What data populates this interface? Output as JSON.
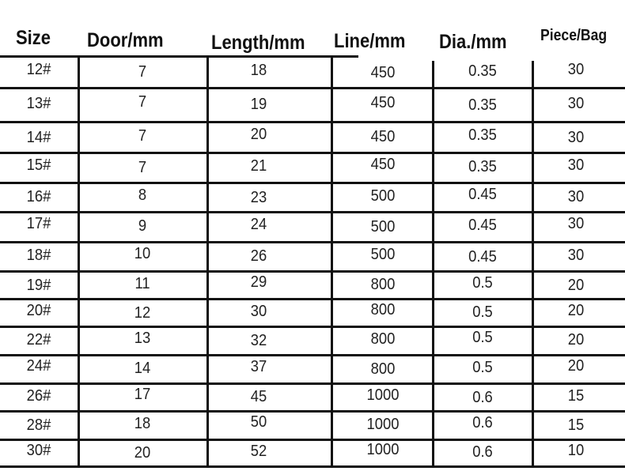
{
  "table": {
    "headers": [
      "Size",
      "Door/mm",
      "Length/mm",
      "Line/mm",
      "Dia./mm",
      "Piece/Bag"
    ],
    "rows": [
      [
        "12#",
        "7",
        "18",
        "450",
        "0.35",
        "30"
      ],
      [
        "13#",
        "7",
        "19",
        "450",
        "0.35",
        "30"
      ],
      [
        "14#",
        "7",
        "20",
        "450",
        "0.35",
        "30"
      ],
      [
        "15#",
        "7",
        "21",
        "450",
        "0.35",
        "30"
      ],
      [
        "16#",
        "8",
        "23",
        "500",
        "0.45",
        "30"
      ],
      [
        "17#",
        "9",
        "24",
        "500",
        "0.45",
        "30"
      ],
      [
        "18#",
        "10",
        "26",
        "500",
        "0.45",
        "30"
      ],
      [
        "19#",
        "11",
        "29",
        "800",
        "0.5",
        "20"
      ],
      [
        "20#",
        "12",
        "30",
        "800",
        "0.5",
        "20"
      ],
      [
        "22#",
        "13",
        "32",
        "800",
        "0.5",
        "20"
      ],
      [
        "24#",
        "14",
        "37",
        "800",
        "0.5",
        "20"
      ],
      [
        "26#",
        "17",
        "45",
        "1000",
        "0.6",
        "15"
      ],
      [
        "28#",
        "18",
        "50",
        "1000",
        "0.6",
        "15"
      ],
      [
        "30#",
        "20",
        "52",
        "1000",
        "0.6",
        "10"
      ]
    ]
  }
}
